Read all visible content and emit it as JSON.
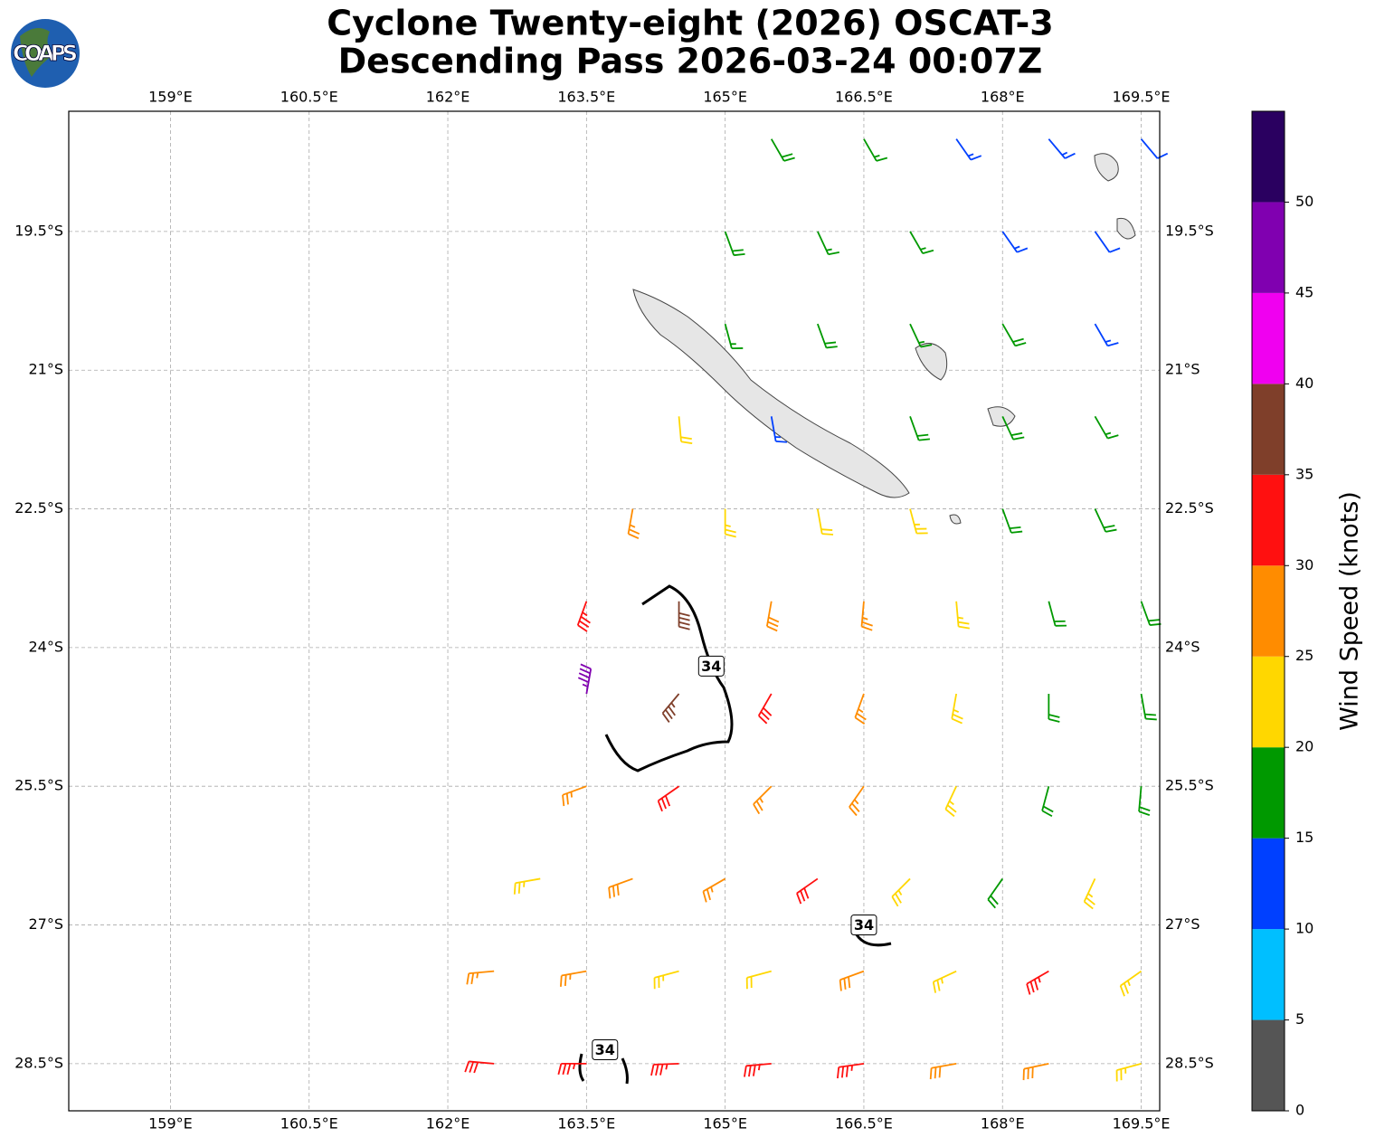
{
  "logo": "COAPS",
  "chart_data": {
    "type": "barbs",
    "title": "Cyclone Twenty-eight (2026) OSCAT-3",
    "subtitle": "Descending Pass 2026-03-24 00:07Z",
    "xlim": [
      157.9,
      169.7
    ],
    "ylim": [
      -29.01,
      -18.2
    ],
    "xticks": [
      {
        "value": 159,
        "label": "159°E"
      },
      {
        "value": 160.5,
        "label": "160.5°E"
      },
      {
        "value": 162,
        "label": "162°E"
      },
      {
        "value": 163.5,
        "label": "163.5°E"
      },
      {
        "value": 165,
        "label": "165°E"
      },
      {
        "value": 166.5,
        "label": "166.5°E"
      },
      {
        "value": 168,
        "label": "168°E"
      },
      {
        "value": 169.5,
        "label": "169.5°E"
      }
    ],
    "yticks": [
      {
        "value": -19.5,
        "label": "19.5°S"
      },
      {
        "value": -21,
        "label": "21°S"
      },
      {
        "value": -22.5,
        "label": "22.5°S"
      },
      {
        "value": -24,
        "label": "24°S"
      },
      {
        "value": -25.5,
        "label": "25.5°S"
      },
      {
        "value": -27,
        "label": "27°S"
      },
      {
        "value": -28.5,
        "label": "28.5°S"
      }
    ],
    "grid": true,
    "colorbar": {
      "label": "Wind Speed (knots)",
      "ylim": [
        0,
        55
      ],
      "yticks": [
        0,
        5,
        10,
        15,
        20,
        25,
        30,
        35,
        40,
        45,
        50
      ],
      "bounds": [
        0,
        5,
        10,
        15,
        20,
        25,
        30,
        35,
        40,
        45,
        50,
        55
      ],
      "colors": [
        "#555555",
        "#00bfff",
        "#0040ff",
        "#009900",
        "#ffd700",
        "#ff8c00",
        "#ff1010",
        "#7f3f2a",
        "#f000f0",
        "#8000b0",
        "#2a0060"
      ]
    },
    "contour_labels": [
      {
        "text": "34",
        "lon": 164.85,
        "lat": -24.2
      },
      {
        "text": "34",
        "lon": 166.5,
        "lat": -27.0
      },
      {
        "text": "34",
        "lon": 163.7,
        "lat": -28.35
      }
    ],
    "barbs": [
      {
        "lon": 165.5,
        "lat": -18.5,
        "speed": 18,
        "dir": 150
      },
      {
        "lon": 166.5,
        "lat": -18.5,
        "speed": 17,
        "dir": 150
      },
      {
        "lon": 167.5,
        "lat": -18.5,
        "speed": 14,
        "dir": 145
      },
      {
        "lon": 168.5,
        "lat": -18.5,
        "speed": 13,
        "dir": 140
      },
      {
        "lon": 169.5,
        "lat": -18.5,
        "speed": 12,
        "dir": 140
      },
      {
        "lon": 165,
        "lat": -19.5,
        "speed": 18,
        "dir": 160
      },
      {
        "lon": 166,
        "lat": -19.5,
        "speed": 17,
        "dir": 155
      },
      {
        "lon": 167,
        "lat": -19.5,
        "speed": 16,
        "dir": 150
      },
      {
        "lon": 168,
        "lat": -19.5,
        "speed": 13,
        "dir": 145
      },
      {
        "lon": 169,
        "lat": -19.5,
        "speed": 12,
        "dir": 145
      },
      {
        "lon": 165,
        "lat": -20.5,
        "speed": 17,
        "dir": 165
      },
      {
        "lon": 166,
        "lat": -20.5,
        "speed": 18,
        "dir": 160
      },
      {
        "lon": 167,
        "lat": -20.5,
        "speed": 17,
        "dir": 155
      },
      {
        "lon": 168,
        "lat": -20.5,
        "speed": 18,
        "dir": 150
      },
      {
        "lon": 169,
        "lat": -20.5,
        "speed": 13,
        "dir": 150
      },
      {
        "lon": 164.5,
        "lat": -21.5,
        "speed": 22,
        "dir": 175
      },
      {
        "lon": 165.5,
        "lat": -21.5,
        "speed": 13,
        "dir": 170
      },
      {
        "lon": 167,
        "lat": -21.5,
        "speed": 18,
        "dir": 160
      },
      {
        "lon": 168,
        "lat": -21.5,
        "speed": 19,
        "dir": 155
      },
      {
        "lon": 169,
        "lat": -21.5,
        "speed": 17,
        "dir": 150
      },
      {
        "lon": 164,
        "lat": -22.5,
        "speed": 27,
        "dir": 190
      },
      {
        "lon": 165,
        "lat": -22.5,
        "speed": 23,
        "dir": 180
      },
      {
        "lon": 166,
        "lat": -22.5,
        "speed": 22,
        "dir": 170
      },
      {
        "lon": 167,
        "lat": -22.5,
        "speed": 23,
        "dir": 165
      },
      {
        "lon": 168,
        "lat": -22.5,
        "speed": 18,
        "dir": 160
      },
      {
        "lon": 169,
        "lat": -22.5,
        "speed": 18,
        "dir": 155
      },
      {
        "lon": 163.5,
        "lat": -23.5,
        "speed": 33,
        "dir": 200
      },
      {
        "lon": 164.5,
        "lat": -23.5,
        "speed": 38,
        "dir": 180
      },
      {
        "lon": 165.5,
        "lat": -23.5,
        "speed": 28,
        "dir": 190
      },
      {
        "lon": 166.5,
        "lat": -23.5,
        "speed": 27,
        "dir": 185
      },
      {
        "lon": 167.5,
        "lat": -23.5,
        "speed": 23,
        "dir": 175
      },
      {
        "lon": 168.5,
        "lat": -23.5,
        "speed": 18,
        "dir": 165
      },
      {
        "lon": 169.5,
        "lat": -23.5,
        "speed": 18,
        "dir": 160
      },
      {
        "lon": 163.5,
        "lat": -24.5,
        "speed": 45,
        "dir": 10
      },
      {
        "lon": 164.5,
        "lat": -24.5,
        "speed": 37,
        "dir": 220
      },
      {
        "lon": 165.5,
        "lat": -24.5,
        "speed": 32,
        "dir": 210
      },
      {
        "lon": 166.5,
        "lat": -24.5,
        "speed": 27,
        "dir": 200
      },
      {
        "lon": 167.5,
        "lat": -24.5,
        "speed": 24,
        "dir": 190
      },
      {
        "lon": 168.5,
        "lat": -24.5,
        "speed": 19,
        "dir": 180
      },
      {
        "lon": 169.5,
        "lat": -24.5,
        "speed": 18,
        "dir": 170
      },
      {
        "lon": 163.5,
        "lat": -25.5,
        "speed": 27,
        "dir": 250
      },
      {
        "lon": 164.5,
        "lat": -25.5,
        "speed": 32,
        "dir": 235
      },
      {
        "lon": 165.5,
        "lat": -25.5,
        "speed": 27,
        "dir": 225
      },
      {
        "lon": 166.5,
        "lat": -25.5,
        "speed": 26,
        "dir": 215
      },
      {
        "lon": 167.5,
        "lat": -25.5,
        "speed": 23,
        "dir": 205
      },
      {
        "lon": 168.5,
        "lat": -25.5,
        "speed": 19,
        "dir": 195
      },
      {
        "lon": 169.5,
        "lat": -25.5,
        "speed": 18,
        "dir": 185
      },
      {
        "lon": 163,
        "lat": -26.5,
        "speed": 23,
        "dir": 260
      },
      {
        "lon": 164,
        "lat": -26.5,
        "speed": 28,
        "dir": 250
      },
      {
        "lon": 165,
        "lat": -26.5,
        "speed": 27,
        "dir": 240
      },
      {
        "lon": 166,
        "lat": -26.5,
        "speed": 32,
        "dir": 235
      },
      {
        "lon": 167,
        "lat": -26.5,
        "speed": 24,
        "dir": 225
      },
      {
        "lon": 168,
        "lat": -26.5,
        "speed": 18,
        "dir": 215
      },
      {
        "lon": 169,
        "lat": -26.5,
        "speed": 23,
        "dir": 205
      },
      {
        "lon": 162.5,
        "lat": -27.5,
        "speed": 27,
        "dir": 265
      },
      {
        "lon": 163.5,
        "lat": -27.5,
        "speed": 26,
        "dir": 260
      },
      {
        "lon": 164.5,
        "lat": -27.5,
        "speed": 24,
        "dir": 255
      },
      {
        "lon": 165.5,
        "lat": -27.5,
        "speed": 22,
        "dir": 255
      },
      {
        "lon": 166.5,
        "lat": -27.5,
        "speed": 28,
        "dir": 250
      },
      {
        "lon": 167.5,
        "lat": -27.5,
        "speed": 24,
        "dir": 245
      },
      {
        "lon": 168.5,
        "lat": -27.5,
        "speed": 33,
        "dir": 240
      },
      {
        "lon": 169.5,
        "lat": -27.5,
        "speed": 23,
        "dir": 235
      },
      {
        "lon": 162.5,
        "lat": -28.5,
        "speed": 32,
        "dir": 275
      },
      {
        "lon": 163.5,
        "lat": -28.5,
        "speed": 33,
        "dir": 270
      },
      {
        "lon": 164.5,
        "lat": -28.5,
        "speed": 33,
        "dir": 268
      },
      {
        "lon": 165.5,
        "lat": -28.5,
        "speed": 33,
        "dir": 265
      },
      {
        "lon": 166.5,
        "lat": -28.5,
        "speed": 33,
        "dir": 262
      },
      {
        "lon": 167.5,
        "lat": -28.5,
        "speed": 28,
        "dir": 260
      },
      {
        "lon": 168.5,
        "lat": -28.5,
        "speed": 28,
        "dir": 258
      },
      {
        "lon": 169.5,
        "lat": -28.5,
        "speed": 24,
        "dir": 255
      }
    ]
  }
}
